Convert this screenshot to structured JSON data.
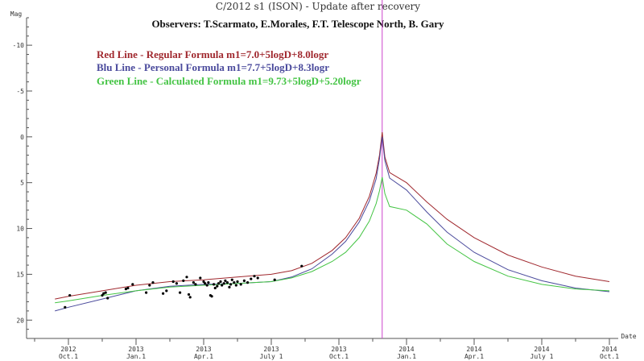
{
  "chart_data": {
    "type": "line",
    "title": "C/2012 s1 (ISON) - Update after recovery",
    "subtitle": "Observers: T.Scarmato, E.Morales, F.T. Telescope North, B. Gary",
    "ylabel": "Mag",
    "xlabel": "Date",
    "y_inverted": true,
    "ylim": [
      -13,
      22
    ],
    "y_ticks": [
      -10,
      -5,
      0,
      5,
      10,
      15,
      20
    ],
    "x_ticks": [
      {
        "year": "2012",
        "date": "Oct.1"
      },
      {
        "year": "2013",
        "date": "Jan.1"
      },
      {
        "year": "2013",
        "date": "Apr.1"
      },
      {
        "year": "2013",
        "date": "July 1"
      },
      {
        "year": "2013",
        "date": "Oct.1"
      },
      {
        "year": "2014",
        "date": "Jan.1"
      },
      {
        "year": "2014",
        "date": "Apr.1"
      },
      {
        "year": "2014",
        "date": "July 1"
      },
      {
        "year": "2014",
        "date": "Oct.1"
      }
    ],
    "perihelion_marker": {
      "x": 4.64,
      "color": "#cc44cc"
    },
    "series": [
      {
        "name": "Red Line - Regular Formula m1=7.0+5logD+8.0logr",
        "color": "#a0282e",
        "points": [
          [
            -0.2,
            17.7
          ],
          [
            0,
            17.4
          ],
          [
            0.5,
            16.8
          ],
          [
            1,
            16.2
          ],
          [
            1.5,
            15.8
          ],
          [
            2,
            15.6
          ],
          [
            2.5,
            15.3
          ],
          [
            3,
            15.0
          ],
          [
            3.3,
            14.6
          ],
          [
            3.6,
            13.8
          ],
          [
            3.9,
            12.4
          ],
          [
            4.1,
            11.0
          ],
          [
            4.3,
            8.9
          ],
          [
            4.45,
            6.5
          ],
          [
            4.55,
            4.0
          ],
          [
            4.6,
            2.0
          ],
          [
            4.64,
            -0.5
          ],
          [
            4.68,
            2.2
          ],
          [
            4.75,
            3.9
          ],
          [
            5.0,
            5.0
          ],
          [
            5.3,
            7.1
          ],
          [
            5.6,
            9.0
          ],
          [
            6.0,
            11.0
          ],
          [
            6.5,
            12.9
          ],
          [
            7.0,
            14.2
          ],
          [
            7.5,
            15.2
          ],
          [
            8,
            15.8
          ],
          [
            8.2,
            16.0
          ]
        ]
      },
      {
        "name": "Blu Line - Personal Formula m1=7.7+5logD+8.3logr",
        "color": "#4a4a9c",
        "points": [
          [
            -0.2,
            19.0
          ],
          [
            0,
            18.6
          ],
          [
            0.5,
            17.7
          ],
          [
            1,
            16.8
          ],
          [
            1.5,
            16.3
          ],
          [
            2,
            16.1
          ],
          [
            2.5,
            16.0
          ],
          [
            3,
            15.8
          ],
          [
            3.3,
            15.3
          ],
          [
            3.6,
            14.4
          ],
          [
            3.9,
            12.8
          ],
          [
            4.1,
            11.4
          ],
          [
            4.3,
            9.3
          ],
          [
            4.45,
            7.0
          ],
          [
            4.55,
            4.6
          ],
          [
            4.6,
            2.4
          ],
          [
            4.64,
            0.0
          ],
          [
            4.68,
            2.6
          ],
          [
            4.75,
            4.5
          ],
          [
            5.0,
            5.8
          ],
          [
            5.3,
            8.2
          ],
          [
            5.6,
            10.4
          ],
          [
            6.0,
            12.6
          ],
          [
            6.5,
            14.5
          ],
          [
            7.0,
            15.7
          ],
          [
            7.5,
            16.5
          ],
          [
            8,
            16.9
          ],
          [
            8.2,
            17.0
          ]
        ]
      },
      {
        "name": "Green Line - Calculated Formula m1=9.73+5logD+5.20logr",
        "color": "#44c444",
        "points": [
          [
            -0.2,
            18.1
          ],
          [
            0,
            17.9
          ],
          [
            0.5,
            17.3
          ],
          [
            1,
            16.8
          ],
          [
            1.5,
            16.4
          ],
          [
            2,
            16.2
          ],
          [
            2.5,
            16.0
          ],
          [
            3,
            15.8
          ],
          [
            3.3,
            15.4
          ],
          [
            3.6,
            14.7
          ],
          [
            3.9,
            13.6
          ],
          [
            4.1,
            12.6
          ],
          [
            4.3,
            11.0
          ],
          [
            4.45,
            9.2
          ],
          [
            4.55,
            7.3
          ],
          [
            4.6,
            5.9
          ],
          [
            4.64,
            4.4
          ],
          [
            4.68,
            6.2
          ],
          [
            4.75,
            7.6
          ],
          [
            5.0,
            8.0
          ],
          [
            5.3,
            9.5
          ],
          [
            5.6,
            11.7
          ],
          [
            6.0,
            13.6
          ],
          [
            6.5,
            15.2
          ],
          [
            7.0,
            16.1
          ],
          [
            7.5,
            16.6
          ],
          [
            8,
            16.8
          ],
          [
            8.2,
            16.9
          ]
        ]
      }
    ],
    "observations": [
      [
        0.02,
        17.3
      ],
      [
        -0.05,
        18.6
      ],
      [
        0.5,
        17.3
      ],
      [
        0.52,
        17.1
      ],
      [
        0.55,
        17.0
      ],
      [
        0.58,
        17.6
      ],
      [
        0.85,
        16.6
      ],
      [
        0.88,
        16.5
      ],
      [
        0.95,
        16.1
      ],
      [
        1.15,
        17.0
      ],
      [
        1.2,
        16.2
      ],
      [
        1.25,
        15.9
      ],
      [
        1.4,
        17.1
      ],
      [
        1.45,
        16.8
      ],
      [
        1.55,
        15.8
      ],
      [
        1.6,
        16.0
      ],
      [
        1.65,
        17.0
      ],
      [
        1.7,
        15.7
      ],
      [
        1.75,
        15.3
      ],
      [
        1.78,
        17.2
      ],
      [
        1.8,
        17.5
      ],
      [
        1.85,
        15.9
      ],
      [
        1.88,
        16.1
      ],
      [
        1.95,
        15.4
      ],
      [
        2.0,
        15.8
      ],
      [
        2.02,
        16.0
      ],
      [
        2.05,
        16.2
      ],
      [
        2.07,
        15.9
      ],
      [
        2.1,
        17.3
      ],
      [
        2.12,
        17.4
      ],
      [
        2.15,
        16.1
      ],
      [
        2.17,
        16.5
      ],
      [
        2.2,
        16.3
      ],
      [
        2.22,
        16.0
      ],
      [
        2.25,
        15.8
      ],
      [
        2.27,
        16.2
      ],
      [
        2.3,
        16.0
      ],
      [
        2.32,
        15.7
      ],
      [
        2.35,
        15.9
      ],
      [
        2.38,
        16.4
      ],
      [
        2.4,
        16.1
      ],
      [
        2.42,
        15.6
      ],
      [
        2.45,
        15.9
      ],
      [
        2.48,
        16.2
      ],
      [
        2.5,
        15.8
      ],
      [
        2.55,
        16.1
      ],
      [
        2.6,
        15.7
      ],
      [
        2.65,
        15.9
      ],
      [
        2.7,
        15.5
      ],
      [
        2.75,
        15.2
      ],
      [
        2.8,
        15.4
      ],
      [
        3.05,
        15.6
      ],
      [
        3.45,
        14.1
      ]
    ]
  }
}
